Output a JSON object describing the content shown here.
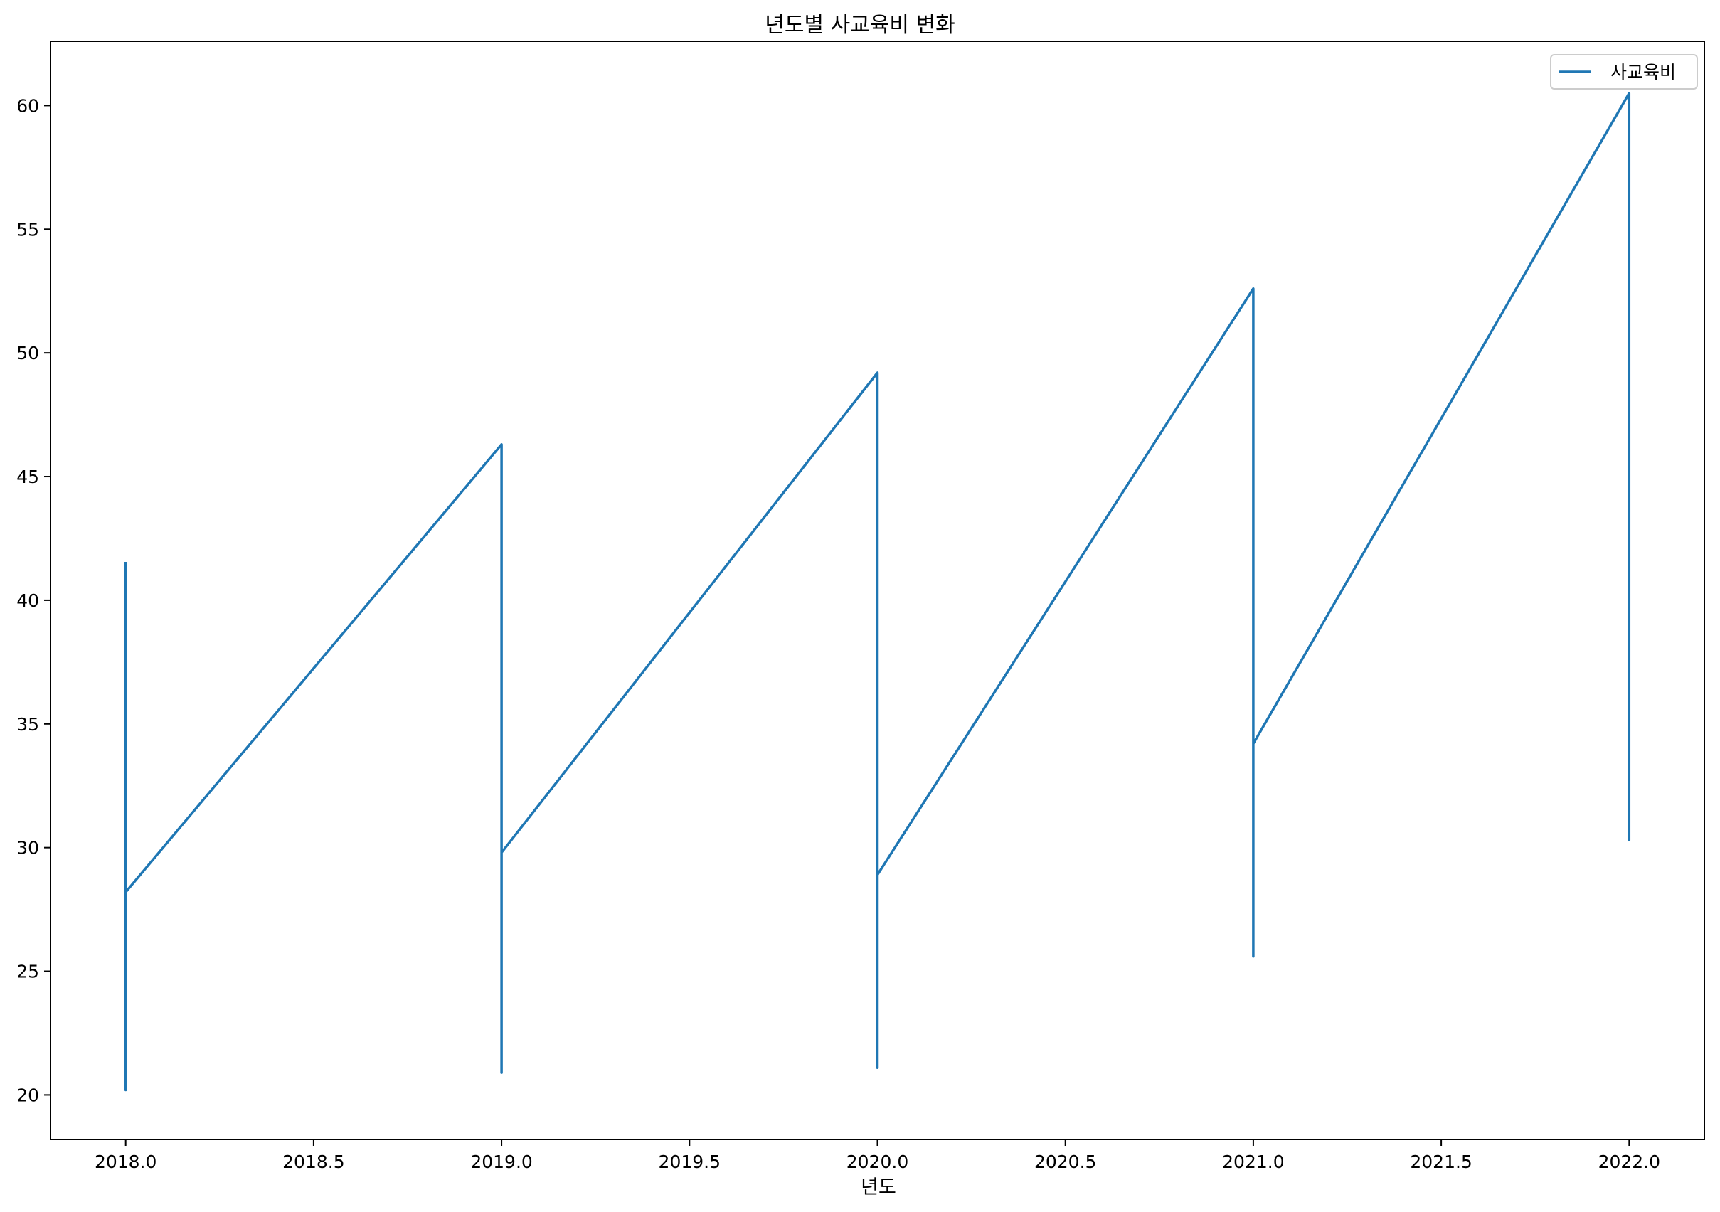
{
  "chart_data": {
    "type": "line",
    "title": "년도별 사교육비 변화",
    "xlabel": "년도",
    "ylabel": "",
    "xlim": [
      2017.8,
      2022.2
    ],
    "ylim": [
      18.2,
      62.6
    ],
    "xticks": [
      2018.0,
      2018.5,
      2019.0,
      2019.5,
      2020.0,
      2020.5,
      2021.0,
      2021.5,
      2022.0
    ],
    "xtick_labels": [
      "2018.0",
      "2018.5",
      "2019.0",
      "2019.5",
      "2020.0",
      "2020.5",
      "2021.0",
      "2021.5",
      "2022.0"
    ],
    "yticks": [
      20,
      25,
      30,
      35,
      40,
      45,
      50,
      55,
      60
    ],
    "ytick_labels": [
      "20",
      "25",
      "30",
      "35",
      "40",
      "45",
      "50",
      "55",
      "60"
    ],
    "grid": false,
    "legend_position": "top-right",
    "series": [
      {
        "name": "사교육비",
        "color": "#1f77b4",
        "x": [
          2018,
          2018,
          2018,
          2018,
          2018,
          2018,
          2018,
          2018,
          2019,
          2019,
          2019,
          2019,
          2019,
          2019,
          2019,
          2019,
          2020,
          2020,
          2020,
          2020,
          2020,
          2020,
          2020,
          2020,
          2021,
          2021,
          2021,
          2021,
          2021,
          2021,
          2021,
          2021,
          2022,
          2022,
          2022,
          2022,
          2022,
          2022,
          2022,
          2022
        ],
        "y": [
          41.5,
          33.4,
          20.2,
          31.0,
          22.1,
          26.5,
          35.2,
          28.2,
          46.3,
          40.2,
          20.9,
          28.3,
          33.1,
          22.7,
          37.2,
          29.8,
          49.2,
          37.2,
          21.1,
          30.9,
          26.2,
          33.5,
          22.9,
          28.9,
          52.6,
          42.2,
          25.6,
          31.7,
          28.9,
          37.8,
          29.5,
          34.2,
          60.5,
          47.3,
          30.3,
          39.3,
          32.6,
          44.0,
          36.4,
          41.8
        ]
      }
    ]
  }
}
